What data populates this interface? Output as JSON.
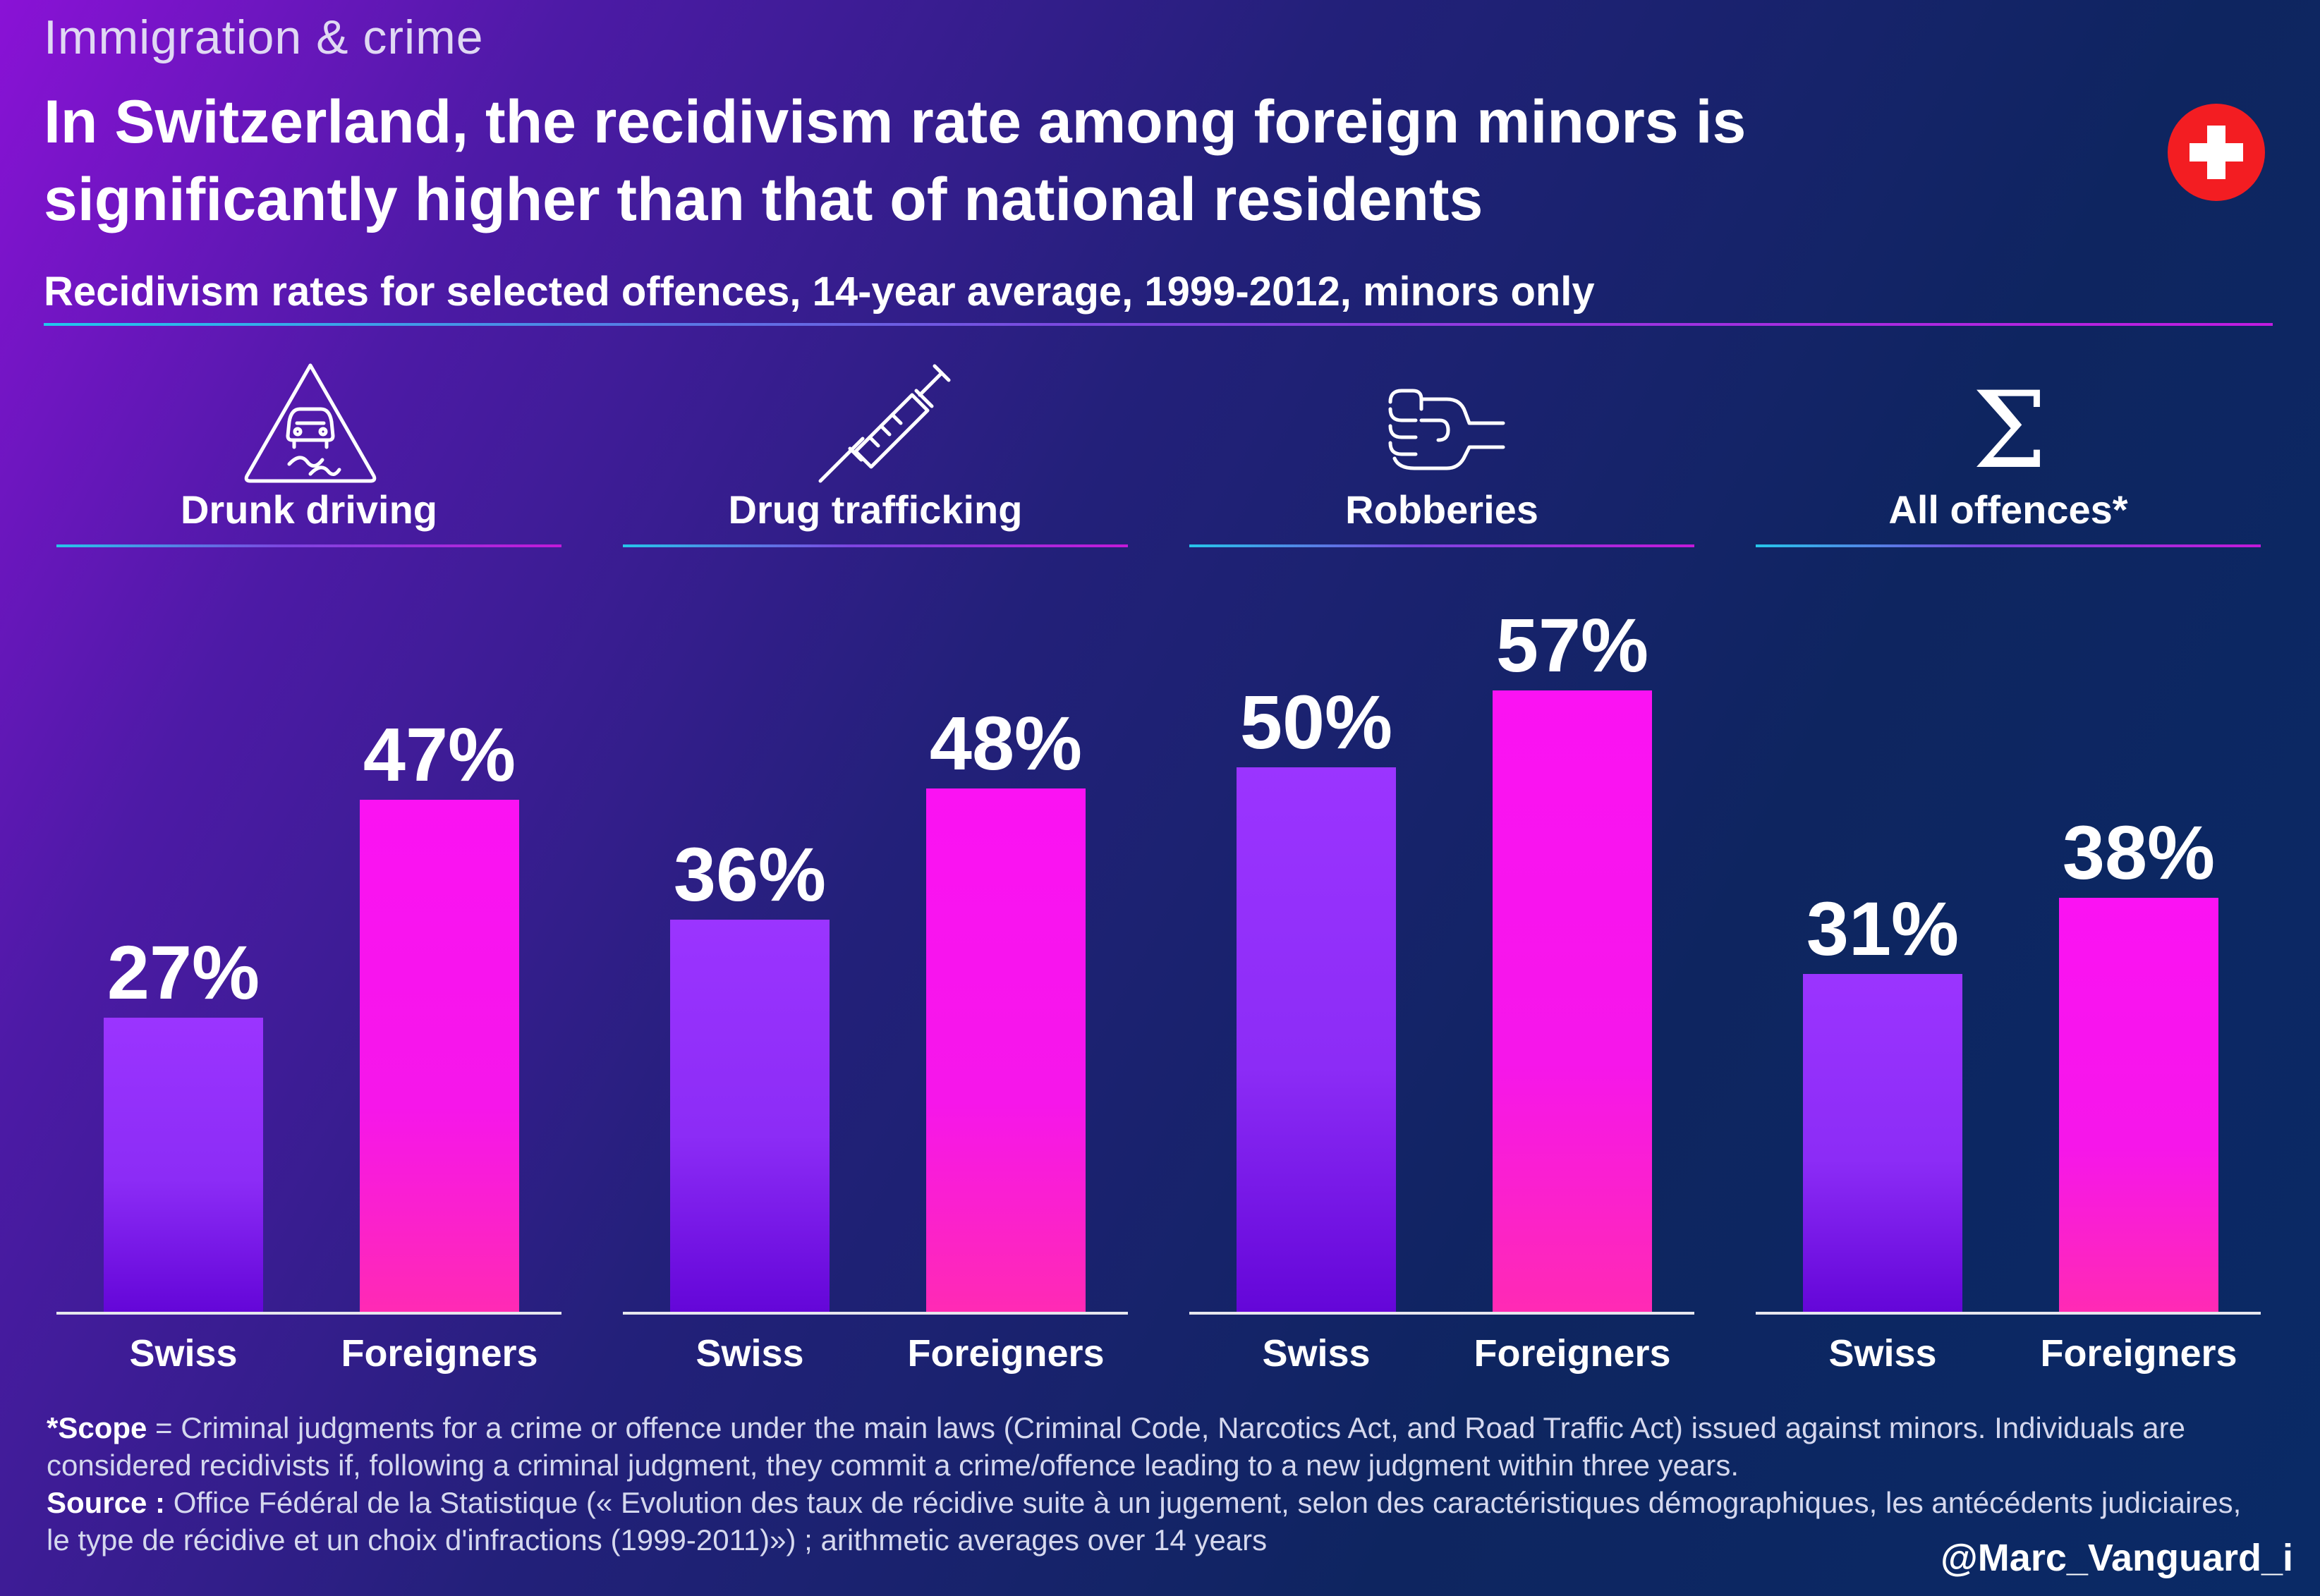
{
  "kicker": "Immigration & crime",
  "title": "In Switzerland, the recidivism rate among foreign minors is significantly higher than that of national residents",
  "subtitle": "Recidivism rates for selected offences, 14-year average, 1999-2012, minors only",
  "flag_icon": "swiss-flag-icon",
  "colors": {
    "swiss": "#8c2cf6",
    "foreigners": "#f616ea"
  },
  "chart_data": {
    "type": "bar",
    "categories": [
      "Drunk driving",
      "Drug trafficking",
      "Robberies",
      "All offences*"
    ],
    "icons": [
      "slippery-road-warning-icon",
      "syringe-icon",
      "fist-icon",
      "sigma-icon"
    ],
    "x_groups": [
      "Swiss",
      "Foreigners"
    ],
    "series": [
      {
        "name": "Swiss",
        "values": [
          27,
          36,
          50,
          31
        ]
      },
      {
        "name": "Foreigners",
        "values": [
          47,
          48,
          57,
          38
        ]
      }
    ],
    "value_labels": [
      [
        "27%",
        "47%"
      ],
      [
        "36%",
        "48%"
      ],
      [
        "50%",
        "57%"
      ],
      [
        "31%",
        "38%"
      ]
    ],
    "ylim": [
      0,
      100
    ]
  },
  "footnote": {
    "scope_label": "*Scope",
    "scope_text": " = Criminal judgments for a crime or offence under the main laws (Criminal Code, Narcotics Act, and Road Traffic Act) issued against minors. Individuals are considered recidivists if, following a criminal judgment, they commit a crime/offence leading to a new judgment within three years.",
    "source_label": "Source :",
    "source_text": " Office Fédéral de la Statistique (« Evolution des taux de récidive suite à un jugement, selon des caractéristiques démographiques, les antécédents judiciaires, le type de récidive et un choix d'infractions (1999-2011)») ; arithmetic averages over 14 years"
  },
  "handle": "@Marc_Vanguard_i"
}
